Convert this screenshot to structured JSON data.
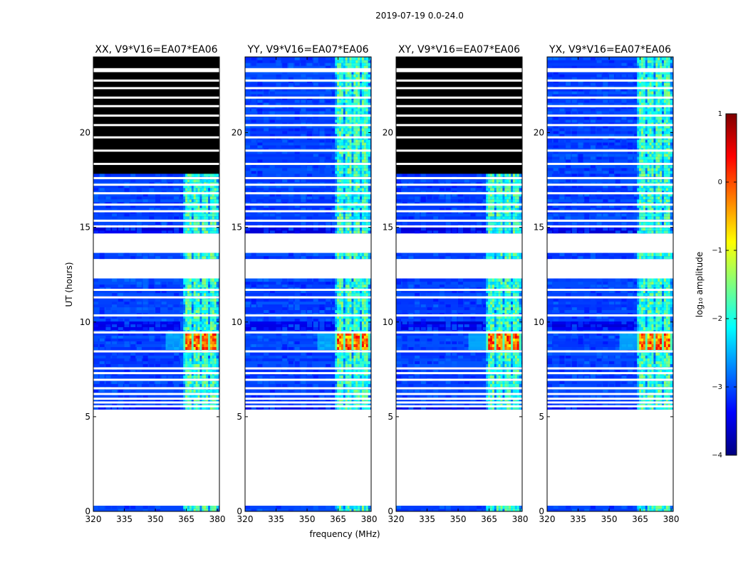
{
  "suptitle": "2019-07-19 0.0-24.0",
  "chart_data": [
    {
      "type": "heatmap",
      "title": "XX, V9*V16=EA07*EA06",
      "xlim": [
        320,
        381
      ],
      "ylim": [
        0,
        24
      ],
      "xticks": [
        320,
        335,
        350,
        365,
        380
      ],
      "yticks": [
        0,
        5,
        10,
        15,
        20
      ],
      "xlabel": "frequency (MHz)",
      "ylabel": "UT (hours)",
      "upper_band_flagged": true,
      "rfi_band_mhz": [
        363.5,
        380
      ]
    },
    {
      "type": "heatmap",
      "title": "YY, V9*V16=EA07*EA06",
      "xlim": [
        320,
        381
      ],
      "ylim": [
        0,
        24
      ],
      "xticks": [
        320,
        335,
        350,
        365,
        380
      ],
      "yticks": [
        0,
        5,
        10,
        15,
        20
      ],
      "xlabel": "frequency (MHz)",
      "ylabel": "UT (hours)",
      "upper_band_flagged": false,
      "rfi_band_mhz": [
        363.5,
        380
      ]
    },
    {
      "type": "heatmap",
      "title": "XY, V9*V16=EA07*EA06",
      "xlim": [
        320,
        381
      ],
      "ylim": [
        0,
        24
      ],
      "xticks": [
        320,
        335,
        350,
        365,
        380
      ],
      "yticks": [
        0,
        5,
        10,
        15,
        20
      ],
      "xlabel": "frequency (MHz)",
      "ylabel": "UT (hours)",
      "upper_band_flagged": true,
      "rfi_band_mhz": [
        363.5,
        380
      ]
    },
    {
      "type": "heatmap",
      "title": "YX, V9*V16=EA07*EA06",
      "xlim": [
        320,
        381
      ],
      "ylim": [
        0,
        24
      ],
      "xticks": [
        320,
        335,
        350,
        365,
        380
      ],
      "yticks": [
        0,
        5,
        10,
        15,
        20
      ],
      "xlabel": "frequency (MHz)",
      "ylabel": "UT (hours)",
      "upper_band_flagged": false,
      "rfi_band_mhz": [
        363.5,
        380
      ]
    }
  ],
  "axes_labels": {
    "xlabel": "frequency (MHz)",
    "ylabel": "UT (hours)"
  },
  "colorbar": {
    "label": "log₁₀ amplitude",
    "range": [
      -4,
      1
    ],
    "ticks": [
      "1",
      "0",
      "−1",
      "−2",
      "−3",
      "−4"
    ],
    "tick_values": [
      1,
      0,
      -1,
      -2,
      -3,
      -4
    ],
    "colormap": "jet",
    "colors": [
      "#00007f",
      "#0000ff",
      "#007fff",
      "#00ffff",
      "#7fff7f",
      "#ffff00",
      "#ff7f00",
      "#ff0000",
      "#7f0000"
    ]
  },
  "data_gaps_hours": [
    [
      0.25,
      5.35
    ],
    [
      12.3,
      13.3
    ],
    [
      13.6,
      14.7
    ]
  ],
  "flagged_row_hours": [
    5.55,
    5.75,
    5.95,
    6.2,
    6.5,
    6.95,
    7.3,
    7.55,
    8.45,
    9.45,
    10.35,
    11.3,
    11.7,
    15.05,
    15.35,
    15.85,
    16.2,
    16.8,
    17.25,
    17.6,
    18.35,
    19.05,
    19.75,
    20.4,
    20.9,
    21.4,
    21.85,
    22.35,
    22.75,
    23.25,
    23.35
  ]
}
